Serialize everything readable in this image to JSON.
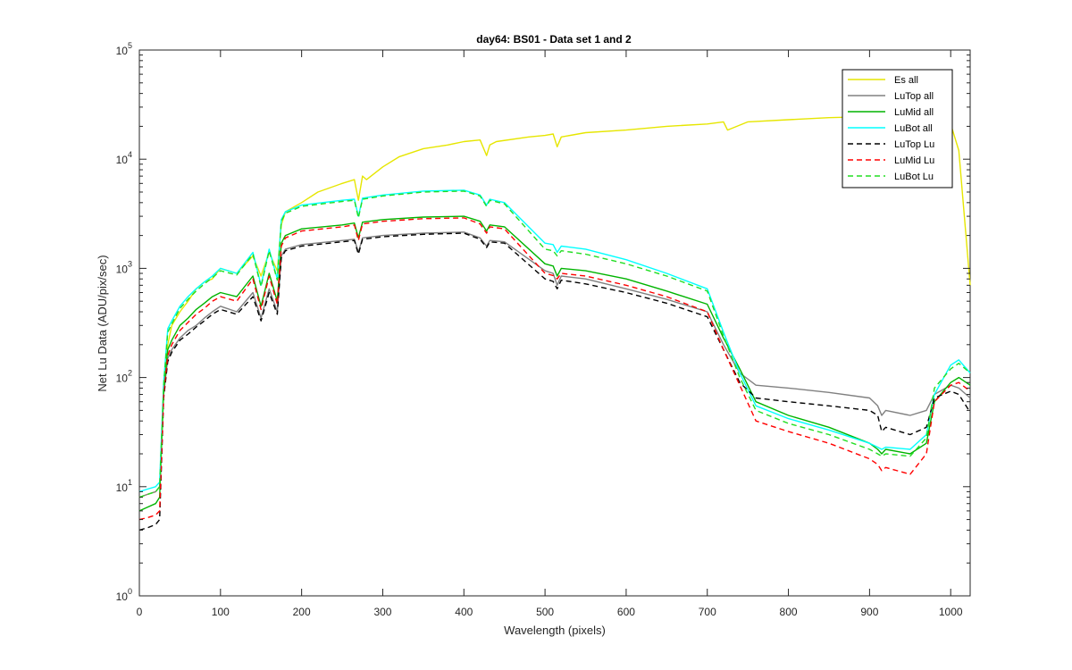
{
  "chart_data": {
    "type": "line",
    "title": "day64: BS01 - Data set 1 and 2",
    "xlabel": "Wavelength (pixels)",
    "ylabel": "Net Lu Data (ADU/pix/sec)",
    "xlim": [
      0,
      1024
    ],
    "ylim": [
      1,
      100000
    ],
    "yscale": "log",
    "xticks": [
      0,
      100,
      200,
      300,
      400,
      500,
      600,
      700,
      800,
      900,
      1000
    ],
    "yticks": [
      {
        "value": 1,
        "base": "10",
        "exp": "0"
      },
      {
        "value": 10,
        "base": "10",
        "exp": "1"
      },
      {
        "value": 100,
        "base": "10",
        "exp": "2"
      },
      {
        "value": 1000,
        "base": "10",
        "exp": "3"
      },
      {
        "value": 10000,
        "base": "10",
        "exp": "4"
      },
      {
        "value": 100000,
        "base": "10",
        "exp": "5"
      }
    ],
    "grid": false,
    "legend_position": "top-right",
    "series": [
      {
        "name": "Es  all",
        "color": "#e6e600",
        "style": "solid",
        "x": [
          0,
          10,
          20,
          25,
          30,
          35,
          40,
          50,
          60,
          70,
          80,
          90,
          100,
          120,
          140,
          150,
          160,
          170,
          175,
          180,
          200,
          220,
          250,
          265,
          270,
          275,
          280,
          300,
          320,
          350,
          380,
          400,
          420,
          428,
          432,
          440,
          480,
          500,
          510,
          515,
          520,
          550,
          600,
          650,
          700,
          720,
          725,
          750,
          800,
          850,
          900,
          950,
          980,
          1000,
          1010,
          1024
        ],
        "y": [
          8,
          8.5,
          9,
          10,
          70,
          200,
          300,
          400,
          500,
          650,
          750,
          800,
          1000,
          900,
          1300,
          850,
          1400,
          950,
          2500,
          3300,
          4000,
          5000,
          6000,
          6500,
          4200,
          7000,
          6500,
          8500,
          10500,
          12500,
          13500,
          14500,
          15000,
          10800,
          13500,
          14500,
          16000,
          16500,
          17000,
          13000,
          16000,
          17500,
          18500,
          20000,
          21000,
          22000,
          18500,
          22000,
          23000,
          24000,
          24500,
          25000,
          25500,
          21000,
          12000,
          700
        ]
      },
      {
        "name": "LuTop  all",
        "color": "#808080",
        "style": "solid",
        "x": [
          0,
          10,
          20,
          25,
          30,
          35,
          40,
          50,
          60,
          70,
          80,
          90,
          100,
          120,
          140,
          150,
          160,
          170,
          175,
          180,
          200,
          250,
          265,
          270,
          275,
          300,
          350,
          400,
          420,
          428,
          432,
          450,
          500,
          510,
          515,
          520,
          550,
          600,
          650,
          700,
          720,
          740,
          760,
          800,
          850,
          900,
          910,
          915,
          920,
          950,
          970,
          980,
          1000,
          1010,
          1024
        ],
        "y": [
          8,
          8.5,
          9,
          10,
          70,
          150,
          180,
          230,
          270,
          300,
          350,
          400,
          450,
          400,
          600,
          350,
          650,
          400,
          1300,
          1500,
          1650,
          1800,
          1850,
          1400,
          1900,
          2000,
          2100,
          2150,
          1900,
          1600,
          1800,
          1750,
          950,
          900,
          700,
          850,
          800,
          650,
          520,
          400,
          200,
          110,
          85,
          80,
          73,
          65,
          55,
          45,
          50,
          45,
          50,
          70,
          85,
          80,
          65
        ]
      },
      {
        "name": "LuMid  all",
        "color": "#00b400",
        "style": "solid",
        "x": [
          0,
          10,
          20,
          25,
          30,
          35,
          40,
          50,
          60,
          70,
          80,
          90,
          100,
          120,
          140,
          150,
          160,
          170,
          175,
          180,
          200,
          250,
          265,
          270,
          275,
          300,
          350,
          400,
          420,
          428,
          432,
          450,
          500,
          510,
          515,
          520,
          550,
          600,
          650,
          700,
          720,
          740,
          760,
          800,
          850,
          900,
          910,
          915,
          920,
          950,
          970,
          980,
          1000,
          1010,
          1024
        ],
        "y": [
          6,
          6.5,
          7,
          8,
          75,
          180,
          220,
          300,
          350,
          420,
          480,
          550,
          600,
          550,
          850,
          450,
          900,
          500,
          1700,
          2000,
          2300,
          2500,
          2600,
          1900,
          2650,
          2800,
          2950,
          3000,
          2700,
          2200,
          2500,
          2400,
          1100,
          1050,
          850,
          1000,
          950,
          800,
          620,
          470,
          230,
          120,
          60,
          45,
          35,
          25,
          22,
          20,
          22,
          20,
          25,
          60,
          90,
          100,
          85
        ]
      },
      {
        "name": "LuBot  all",
        "color": "#00ffff",
        "style": "solid",
        "x": [
          0,
          10,
          20,
          25,
          30,
          35,
          40,
          50,
          60,
          70,
          80,
          90,
          100,
          120,
          140,
          150,
          160,
          170,
          175,
          180,
          200,
          250,
          265,
          270,
          275,
          300,
          350,
          400,
          420,
          428,
          432,
          450,
          500,
          510,
          515,
          520,
          550,
          600,
          650,
          700,
          720,
          740,
          760,
          800,
          850,
          900,
          910,
          915,
          920,
          950,
          970,
          980,
          1000,
          1010,
          1024
        ],
        "y": [
          9,
          9.5,
          10,
          11,
          90,
          280,
          330,
          450,
          550,
          650,
          750,
          850,
          1000,
          900,
          1400,
          700,
          1500,
          800,
          2800,
          3300,
          3800,
          4200,
          4300,
          3000,
          4400,
          4700,
          5100,
          5200,
          4700,
          3800,
          4300,
          4000,
          1700,
          1650,
          1400,
          1600,
          1500,
          1200,
          900,
          650,
          260,
          110,
          55,
          42,
          33,
          25,
          23,
          22,
          23,
          22,
          30,
          70,
          130,
          145,
          110
        ]
      },
      {
        "name": "LuTop  Lu",
        "color": "#000000",
        "style": "dashed",
        "x": [
          0,
          10,
          20,
          25,
          30,
          35,
          40,
          50,
          60,
          70,
          80,
          90,
          100,
          120,
          140,
          150,
          160,
          170,
          175,
          180,
          200,
          250,
          265,
          270,
          275,
          300,
          350,
          400,
          420,
          428,
          432,
          450,
          500,
          510,
          515,
          520,
          550,
          600,
          650,
          700,
          720,
          740,
          760,
          800,
          850,
          900,
          910,
          915,
          920,
          950,
          970,
          980,
          1000,
          1010,
          1024
        ],
        "y": [
          4,
          4.2,
          4.5,
          5,
          65,
          140,
          170,
          220,
          250,
          290,
          330,
          380,
          420,
          380,
          550,
          330,
          600,
          380,
          1250,
          1450,
          1600,
          1750,
          1800,
          1350,
          1850,
          1950,
          2050,
          2100,
          1850,
          1550,
          1750,
          1700,
          800,
          760,
          650,
          780,
          720,
          600,
          480,
          360,
          180,
          90,
          65,
          60,
          55,
          50,
          45,
          32,
          35,
          30,
          35,
          65,
          75,
          70,
          48
        ]
      },
      {
        "name": "LuMid  Lu",
        "color": "#ff0000",
        "style": "dashed",
        "x": [
          0,
          10,
          20,
          25,
          30,
          35,
          40,
          50,
          60,
          70,
          80,
          90,
          100,
          120,
          140,
          150,
          160,
          170,
          175,
          180,
          200,
          250,
          265,
          270,
          275,
          300,
          350,
          400,
          420,
          428,
          432,
          450,
          500,
          510,
          515,
          520,
          550,
          600,
          650,
          700,
          720,
          740,
          760,
          800,
          850,
          900,
          910,
          915,
          920,
          950,
          970,
          980,
          1000,
          1010,
          1024
        ],
        "y": [
          5,
          5.2,
          5.5,
          6,
          70,
          160,
          200,
          270,
          320,
          380,
          430,
          500,
          550,
          500,
          800,
          420,
          850,
          470,
          1600,
          1900,
          2200,
          2400,
          2500,
          1800,
          2550,
          2700,
          2850,
          2900,
          2550,
          2100,
          2400,
          2300,
          900,
          860,
          800,
          900,
          850,
          700,
          550,
          400,
          180,
          85,
          40,
          32,
          25,
          18,
          16,
          14,
          15,
          13,
          20,
          60,
          85,
          90,
          75
        ]
      },
      {
        "name": "LuBot  Lu",
        "color": "#22dd22",
        "style": "dashed",
        "x": [
          0,
          10,
          20,
          25,
          30,
          35,
          40,
          50,
          60,
          70,
          80,
          90,
          100,
          120,
          140,
          150,
          160,
          170,
          175,
          180,
          200,
          250,
          265,
          270,
          275,
          300,
          350,
          400,
          420,
          428,
          432,
          450,
          500,
          510,
          515,
          520,
          550,
          600,
          650,
          700,
          720,
          740,
          760,
          800,
          850,
          900,
          910,
          915,
          920,
          950,
          970,
          980,
          1000,
          1010,
          1024
        ],
        "y": [
          8,
          8.5,
          9,
          10,
          85,
          260,
          310,
          430,
          520,
          620,
          720,
          820,
          950,
          870,
          1350,
          680,
          1450,
          780,
          2700,
          3200,
          3700,
          4100,
          4200,
          2900,
          4300,
          4600,
          5000,
          5100,
          4600,
          3700,
          4200,
          3900,
          1500,
          1450,
          1300,
          1450,
          1350,
          1100,
          850,
          620,
          240,
          100,
          50,
          38,
          30,
          22,
          20,
          19,
          20,
          19,
          28,
          80,
          120,
          135,
          110
        ]
      }
    ]
  }
}
